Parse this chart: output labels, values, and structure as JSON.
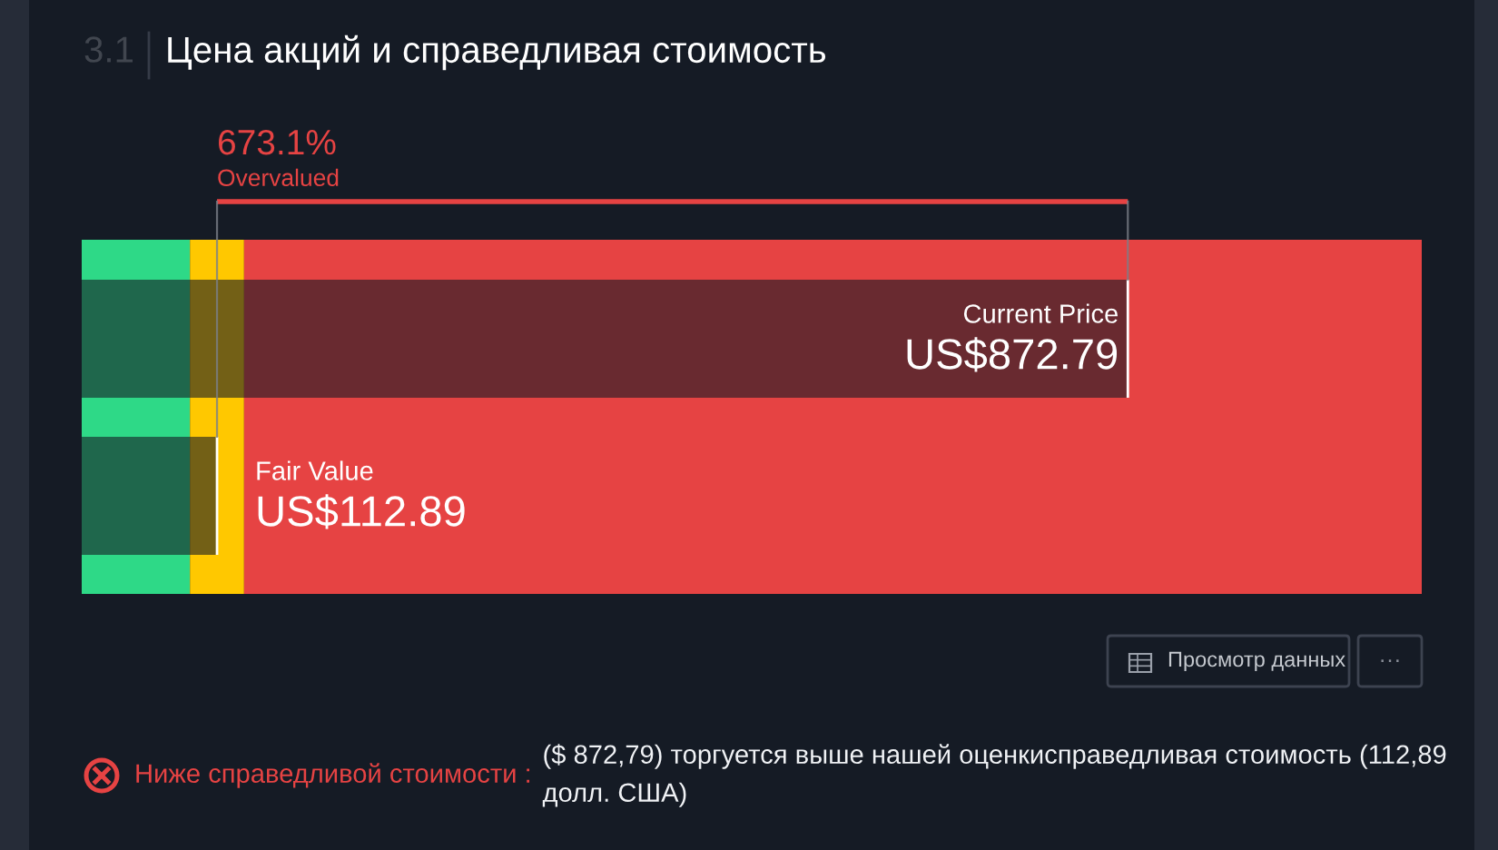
{
  "chart_data": {
    "type": "bar",
    "orientation": "horizontal",
    "title": "Цена акций и справедливая стоимость",
    "categories": [
      "Current Price",
      "Fair Value"
    ],
    "values": [
      872.79,
      112.89
    ],
    "value_labels": [
      "US$872.79",
      "US$112.89"
    ],
    "colors": [
      "#151b25",
      "#151b25"
    ],
    "xlim": [
      0,
      1118
    ],
    "tick_labels": false,
    "bands": [
      {
        "axis": "x",
        "from": 0,
        "to": 90.31,
        "color": "#2ed987"
      },
      {
        "axis": "x",
        "from": 90.31,
        "to": 135.47,
        "color": "#ffc800"
      },
      {
        "axis": "x",
        "from": 135.47,
        "to": 1118,
        "color": "#e64343"
      }
    ],
    "annotations": [
      "3.1",
      "673.1%",
      "Overvalued",
      "Ниже справедливой стоимости :",
      "($ 872,79) торгуется выше нашей оценкисправедливая стоимость (112,89 долл. США)",
      "Просмотр данных",
      "···"
    ]
  }
}
